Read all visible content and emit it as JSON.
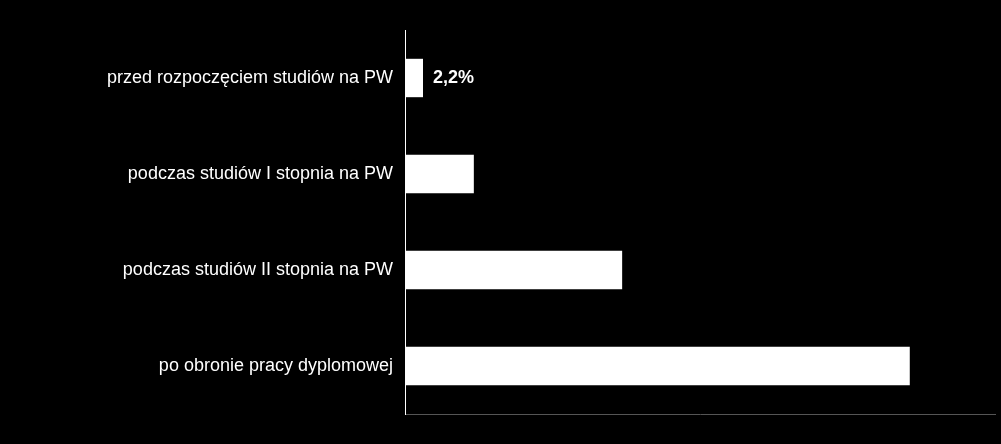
{
  "chart_data": {
    "type": "bar",
    "orientation": "horizontal",
    "categories": [
      "przed rozpoczęciem studiów na PW",
      "podczas studiów I stopnia na PW",
      "podczas studiów II stopnia na PW",
      "po obronie pracy dyplomowej"
    ],
    "values": [
      2.2,
      8.4,
      26.5,
      61.6
    ],
    "value_labels": [
      "2,2%",
      null,
      null,
      null
    ],
    "data_labels": true,
    "color": "#ffffff",
    "xlim": [
      0,
      72
    ],
    "grid": false,
    "tick_labels": "y"
  }
}
